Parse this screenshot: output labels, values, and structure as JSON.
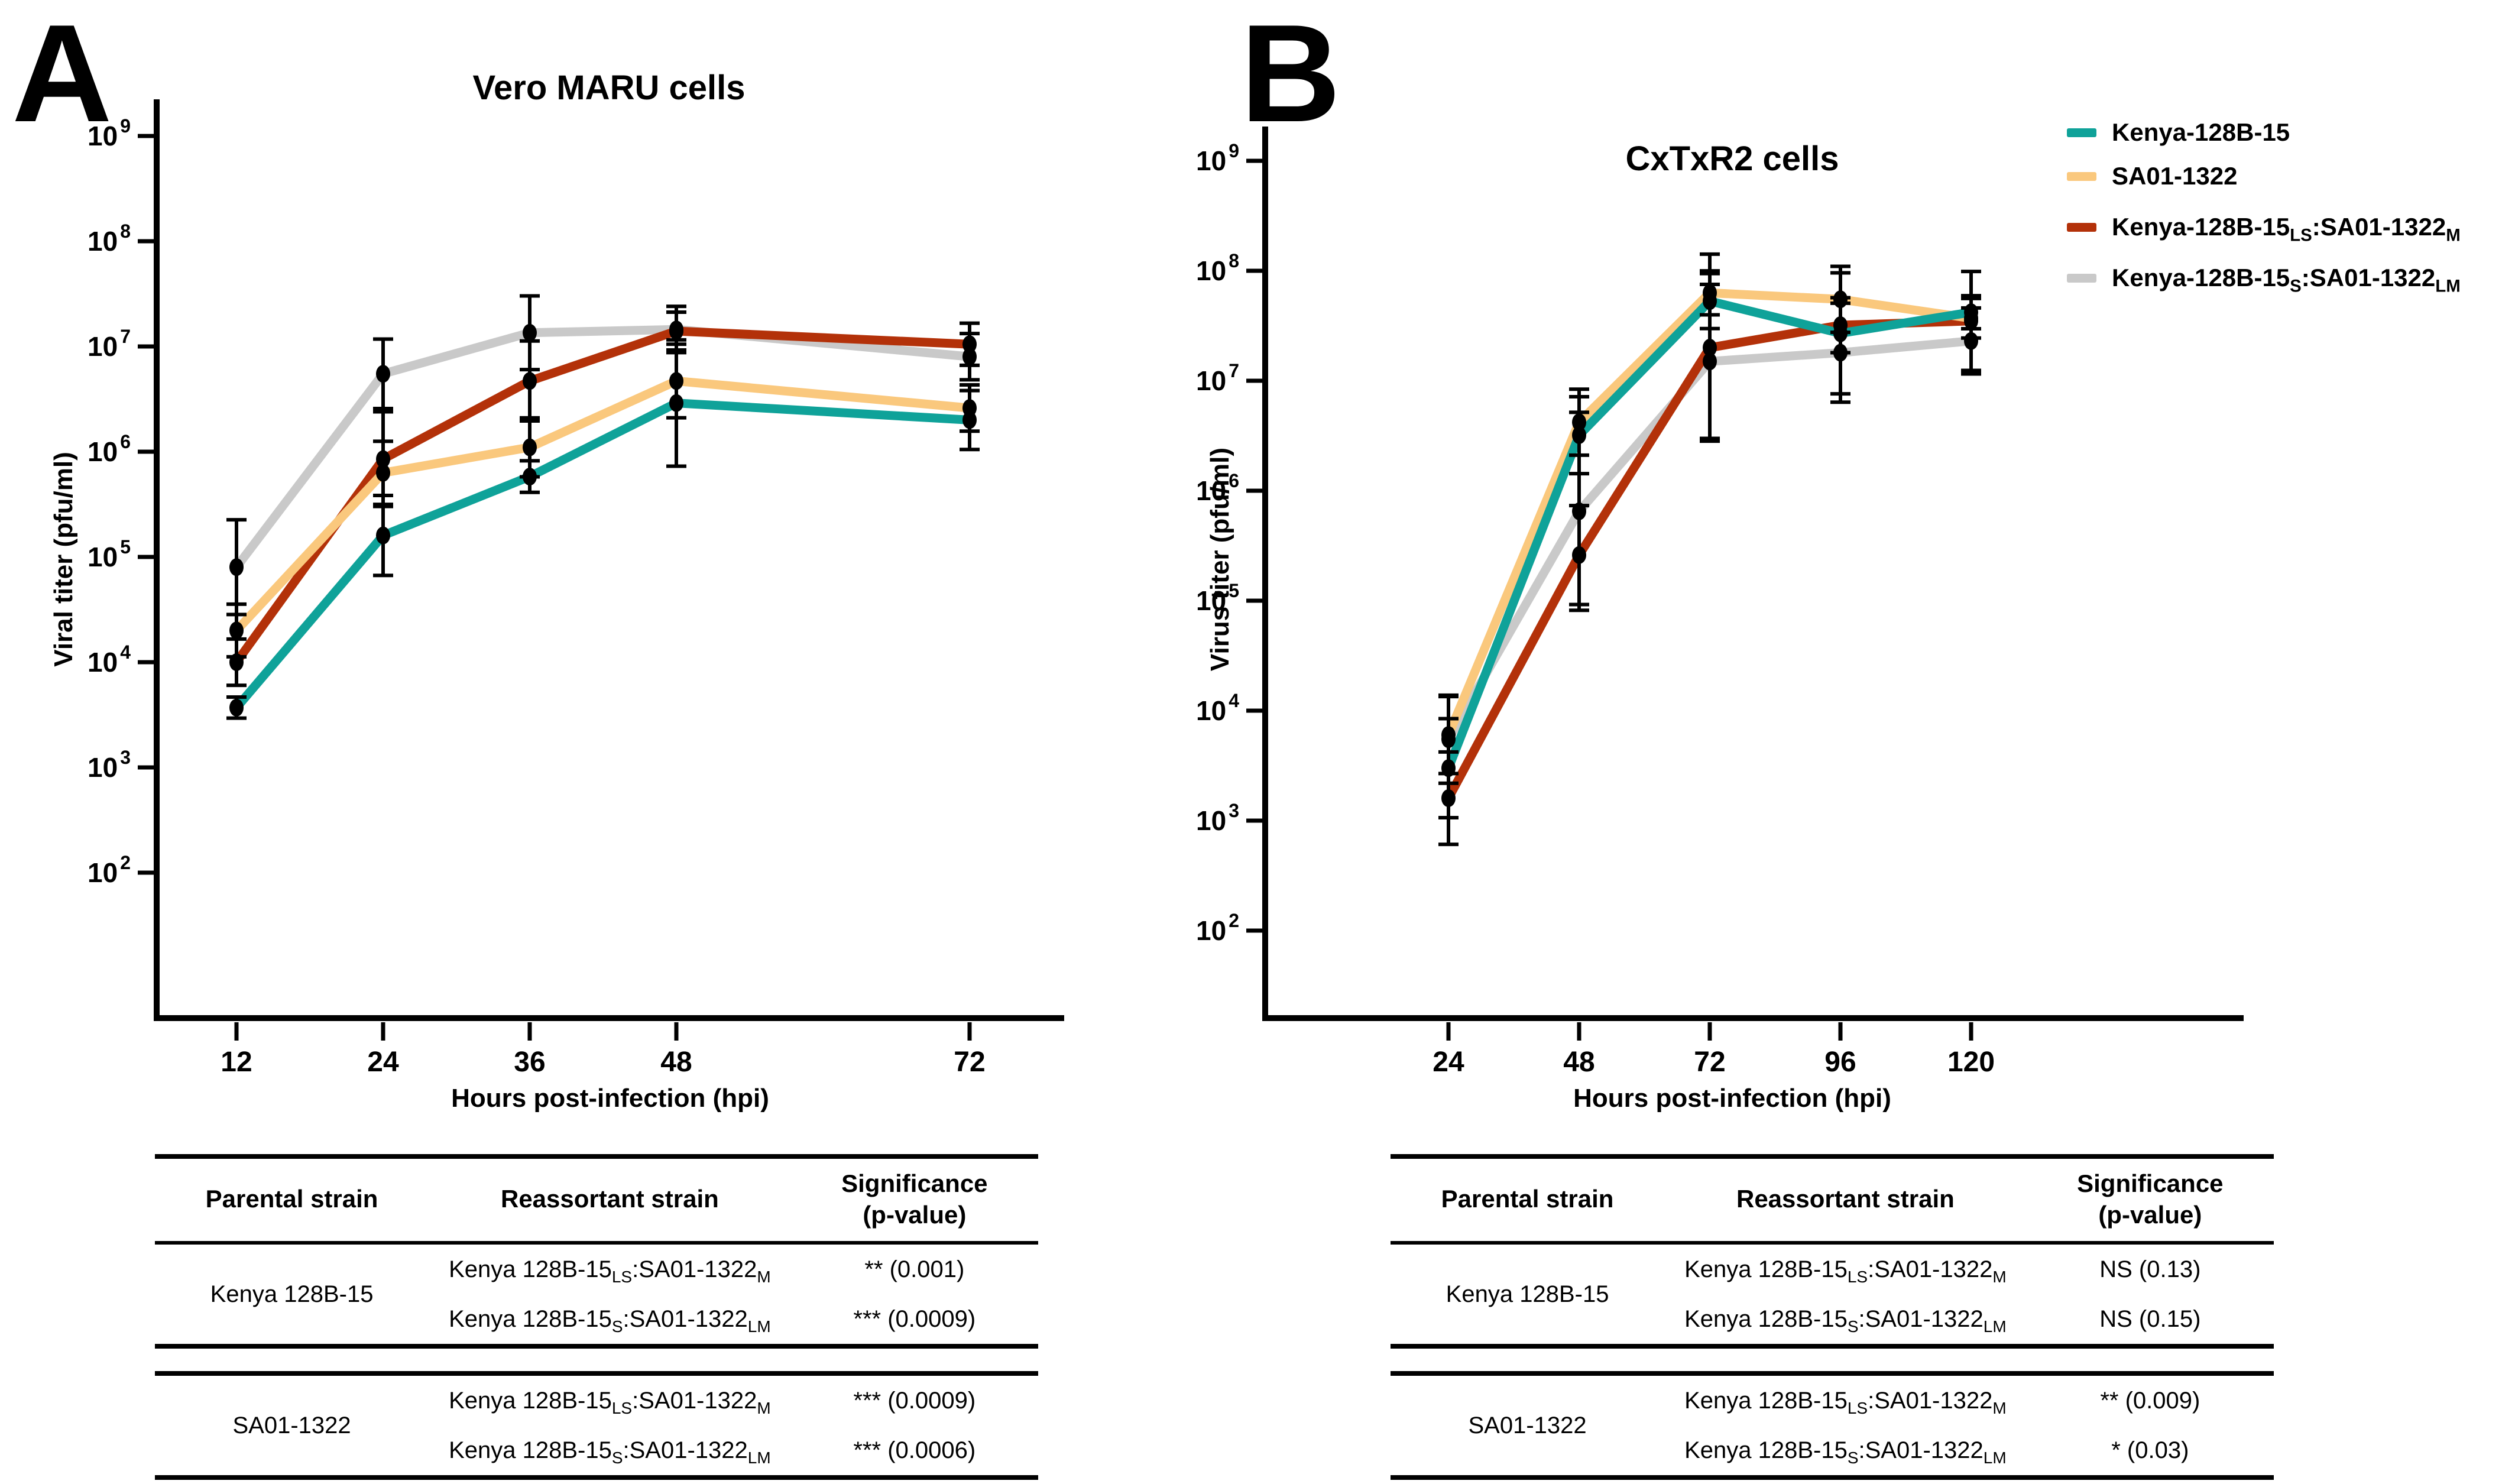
{
  "colors": {
    "teal": "#0FA299",
    "orange": "#FAC87D",
    "red": "#B33109",
    "gray": "#C9C9C9",
    "axis": "#000000"
  },
  "point_format": [
    "hpi",
    "titer_pfu_ml",
    "err_log10_plus_minus"
  ],
  "chart_data": [
    {
      "type": "line",
      "panel_label": "A",
      "title": "Vero MARU cells",
      "xlabel": "Hours post-infection (hpi)",
      "ylabel": "Viral titer (pfu/ml)",
      "x_scale": "linear",
      "y_scale": "log10",
      "x_ticks": [
        12,
        24,
        36,
        48,
        72
      ],
      "y_tick_exponents": [
        9,
        8,
        7,
        6,
        5,
        4,
        3,
        2
      ],
      "ylim": [
        100,
        1000000000
      ],
      "grid": false,
      "series": [
        {
          "id": "gray",
          "name": "Kenya-128B-15S:SA01-1322LM",
          "color_key": "gray",
          "points": [
            [
              12,
              80000,
              0.45
            ],
            [
              24,
              5500000,
              0.33
            ],
            [
              36,
              13500000,
              0.35
            ],
            [
              48,
              14500000,
              0.22
            ],
            [
              72,
              8000000,
              0.22
            ]
          ]
        },
        {
          "id": "red",
          "name": "Kenya-128B-15LS:SA01-1322M",
          "color_key": "red",
          "points": [
            [
              12,
              10000,
              0.22
            ],
            [
              24,
              850000,
              0.45
            ],
            [
              36,
              4700000,
              0.38
            ],
            [
              48,
              14000000,
              0.18
            ],
            [
              72,
              10500000,
              0.2
            ]
          ]
        },
        {
          "id": "orange",
          "name": "SA01-1322",
          "color_key": "orange",
          "points": [
            [
              12,
              20000,
              0.25
            ],
            [
              24,
              630000,
              0.3
            ],
            [
              36,
              1100000,
              0.28
            ],
            [
              48,
              4700000,
              0.35
            ],
            [
              72,
              2600000,
              0.22
            ]
          ]
        },
        {
          "id": "teal",
          "name": "Kenya-128B-15",
          "color_key": "teal",
          "points": [
            [
              12,
              3700,
              0.1
            ],
            [
              24,
              160000,
              0.38
            ],
            [
              36,
              580000,
              0.15
            ],
            [
              48,
              2900000,
              0.6
            ],
            [
              72,
              2000000,
              0.28
            ]
          ]
        }
      ]
    },
    {
      "type": "line",
      "panel_label": "B",
      "title": "CxTxR2 cells",
      "xlabel": "Hours post-infection (hpi)",
      "ylabel": "Virus titer (pfu/ml)",
      "x_scale": "linear",
      "y_scale": "log10",
      "x_ticks": [
        24,
        48,
        72,
        96,
        120
      ],
      "y_tick_exponents": [
        9,
        8,
        7,
        6,
        5,
        4,
        3,
        2
      ],
      "ylim": [
        100,
        1000000000
      ],
      "grid": false,
      "legend_position": "top-right (shared legend)",
      "series": [
        {
          "id": "gray",
          "name": "Kenya-128B-15S:SA01-1322LM",
          "color_key": "gray",
          "points": [
            [
              24,
              5500,
              0.4
            ],
            [
              48,
              650000,
              0.9
            ],
            [
              72,
              15000000,
              0.7
            ],
            [
              96,
              18000000,
              0.45
            ],
            [
              120,
              23000000,
              0.3
            ]
          ]
        },
        {
          "id": "red",
          "name": "Kenya-128B-15LS:SA01-1322M",
          "color_key": "red",
          "points": [
            [
              24,
              1600,
              0.42
            ],
            [
              48,
              260000,
              0.45
            ],
            [
              72,
              20000000,
              0.85
            ],
            [
              96,
              32000000,
              0.25
            ],
            [
              120,
              35000000,
              0.45
            ]
          ]
        },
        {
          "id": "orange",
          "name": "SA01-1322",
          "color_key": "orange",
          "points": [
            [
              24,
              6000,
              0.35
            ],
            [
              48,
              4200000,
              0.3
            ],
            [
              72,
              63000000,
              0.2
            ],
            [
              96,
              55000000,
              0.3
            ],
            [
              120,
              37000000,
              0.18
            ]
          ]
        },
        {
          "id": "teal",
          "name": "Kenya-128B-15",
          "color_key": "teal",
          "points": [
            [
              24,
              3000,
              0.45
            ],
            [
              48,
              3200000,
              0.35
            ],
            [
              72,
              53000000,
              0.25
            ],
            [
              96,
              27000000,
              0.55
            ],
            [
              120,
              42000000,
              0.15
            ]
          ]
        }
      ]
    }
  ],
  "legend": {
    "items": [
      {
        "color_key": "teal",
        "label_rich": [
          {
            "t": "Kenya-128B-15"
          }
        ]
      },
      {
        "color_key": "orange",
        "label_rich": [
          {
            "t": "SA01-1322"
          }
        ]
      },
      {
        "color_key": "red",
        "label_rich": [
          {
            "t": "Kenya-128B-15"
          },
          {
            "t": "LS",
            "sub": true
          },
          {
            "t": ":SA01-1322"
          },
          {
            "t": "M",
            "sub": true
          }
        ]
      },
      {
        "color_key": "gray",
        "label_rich": [
          {
            "t": "Kenya-128B-15"
          },
          {
            "t": "S",
            "sub": true
          },
          {
            "t": ":SA01-1322"
          },
          {
            "t": "LM",
            "sub": true
          }
        ]
      }
    ]
  },
  "tables": [
    {
      "panel": "A",
      "headers": {
        "parental": "Parental strain",
        "reassortant": "Reassortant strain",
        "significance_line1": "Significance",
        "significance_line2": "(p-value)"
      },
      "groups": [
        {
          "parental": "Kenya 128B-15",
          "rows": [
            {
              "strain_rich": [
                {
                  "t": "Kenya 128B-15"
                },
                {
                  "t": "LS",
                  "sub": true
                },
                {
                  "t": ":SA01-1322"
                },
                {
                  "t": "M",
                  "sub": true
                }
              ],
              "significance": "** (0.001)"
            },
            {
              "strain_rich": [
                {
                  "t": "Kenya 128B-15"
                },
                {
                  "t": "S",
                  "sub": true
                },
                {
                  "t": ":SA01-1322"
                },
                {
                  "t": "LM",
                  "sub": true
                }
              ],
              "significance": "*** (0.0009)"
            }
          ]
        },
        {
          "parental": "SA01-1322",
          "rows": [
            {
              "strain_rich": [
                {
                  "t": "Kenya 128B-15"
                },
                {
                  "t": "LS",
                  "sub": true
                },
                {
                  "t": ":SA01-1322"
                },
                {
                  "t": "M",
                  "sub": true
                }
              ],
              "significance": "*** (0.0009)"
            },
            {
              "strain_rich": [
                {
                  "t": "Kenya 128B-15"
                },
                {
                  "t": "S",
                  "sub": true
                },
                {
                  "t": ":SA01-1322"
                },
                {
                  "t": "LM",
                  "sub": true
                }
              ],
              "significance": "*** (0.0006)"
            }
          ]
        }
      ]
    },
    {
      "panel": "B",
      "headers": {
        "parental": "Parental strain",
        "reassortant": "Reassortant strain",
        "significance_line1": "Significance",
        "significance_line2": "(p-value)"
      },
      "groups": [
        {
          "parental": "Kenya 128B-15",
          "rows": [
            {
              "strain_rich": [
                {
                  "t": "Kenya 128B-15"
                },
                {
                  "t": "LS",
                  "sub": true
                },
                {
                  "t": ":SA01-1322"
                },
                {
                  "t": "M",
                  "sub": true
                }
              ],
              "significance": "NS (0.13)"
            },
            {
              "strain_rich": [
                {
                  "t": "Kenya 128B-15"
                },
                {
                  "t": "S",
                  "sub": true
                },
                {
                  "t": ":SA01-1322"
                },
                {
                  "t": "LM",
                  "sub": true
                }
              ],
              "significance": "NS (0.15)"
            }
          ]
        },
        {
          "parental": "SA01-1322",
          "rows": [
            {
              "strain_rich": [
                {
                  "t": "Kenya 128B-15"
                },
                {
                  "t": "LS",
                  "sub": true
                },
                {
                  "t": ":SA01-1322"
                },
                {
                  "t": "M",
                  "sub": true
                }
              ],
              "significance": "** (0.009)"
            },
            {
              "strain_rich": [
                {
                  "t": "Kenya 128B-15"
                },
                {
                  "t": "S",
                  "sub": true
                },
                {
                  "t": ":SA01-1322"
                },
                {
                  "t": "LM",
                  "sub": true
                }
              ],
              "significance": "* (0.03)"
            }
          ]
        }
      ]
    }
  ]
}
